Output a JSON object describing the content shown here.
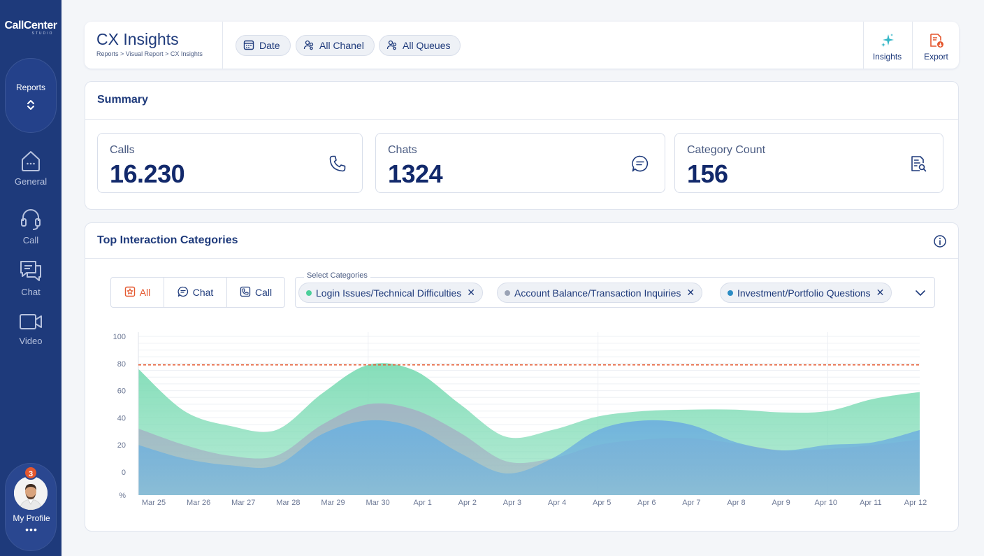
{
  "sidebar": {
    "logo": "CallCenter",
    "logo_sub": "STUDIO",
    "reports_label": "Reports",
    "items": [
      {
        "label": "General",
        "icon": "home-icon"
      },
      {
        "label": "Call",
        "icon": "headset-icon"
      },
      {
        "label": "Chat",
        "icon": "chat-icon"
      },
      {
        "label": "Video",
        "icon": "video-icon"
      }
    ],
    "profile": {
      "label": "My Profile",
      "badge": "3",
      "more": "•••"
    }
  },
  "header": {
    "title": "CX Insights",
    "breadcrumb": "Reports >  Visual Report  > CX Insights",
    "filters": [
      {
        "label": "Date",
        "icon": "calendar-icon"
      },
      {
        "label": "All Chanel",
        "icon": "users-icon"
      },
      {
        "label": "All Queues",
        "icon": "users-icon"
      }
    ],
    "actions": [
      {
        "label": "Insights",
        "icon": "sparkles-icon"
      },
      {
        "label": "Export",
        "icon": "export-icon"
      }
    ]
  },
  "summary": {
    "title": "Summary",
    "stats": [
      {
        "label": "Calls",
        "value": "16.230",
        "icon": "phone-icon"
      },
      {
        "label": "Chats",
        "value": "1324",
        "icon": "message-icon"
      },
      {
        "label": "Category Count",
        "value": "156",
        "icon": "document-search-icon"
      }
    ]
  },
  "categories": {
    "title": "Top Interaction Categories",
    "channel_options": [
      "All",
      "Chat",
      "Call"
    ],
    "active_option": "All",
    "select_label": "Select Categories",
    "selected": [
      {
        "label": "Login Issues/Technical Difficulties",
        "color": "#4ccf9a"
      },
      {
        "label": "Account Balance/Transaction Inquiries",
        "color": "#9aa3b5"
      },
      {
        "label": "Investment/Portfolio Questions",
        "color": "#2b8cc4"
      }
    ]
  },
  "chart_data": {
    "type": "area",
    "x": [
      "Mar 25",
      "Mar 26",
      "Mar 27",
      "Mar 28",
      "Mar 29",
      "Mar 30",
      "Apr 1",
      "Apr 2",
      "Apr 3",
      "Apr 4",
      "Apr 5",
      "Apr 6",
      "Apr 7",
      "Apr 8",
      "Apr 9",
      "Apr 10",
      "Apr 11",
      "Apr 12"
    ],
    "ylim": [
      0,
      100
    ],
    "y_ticks": [
      "100",
      "80",
      "60",
      "40",
      "20",
      "0",
      "%"
    ],
    "threshold": 79,
    "threshold_color": "#e4572e",
    "series": [
      {
        "name": "Login Issues/Technical Difficulties",
        "color": "#7fdcb6",
        "values": [
          76,
          45,
          34,
          31,
          58,
          79,
          75,
          50,
          26,
          31,
          41,
          45,
          46,
          46,
          44,
          45,
          54,
          59
        ]
      },
      {
        "name": "Account Balance/Transaction Inquiries",
        "color": "#a3b3c4",
        "values": [
          32,
          20,
          12,
          12,
          35,
          50,
          46,
          29,
          8,
          10,
          20,
          24,
          25,
          21,
          16,
          17,
          20,
          24
        ]
      },
      {
        "name": "Investment/Portfolio Questions",
        "color": "#6fb1de",
        "values": [
          20,
          10,
          5,
          5,
          28,
          38,
          33,
          14,
          -1,
          10,
          31,
          38,
          35,
          22,
          16,
          20,
          22,
          31
        ]
      }
    ]
  }
}
